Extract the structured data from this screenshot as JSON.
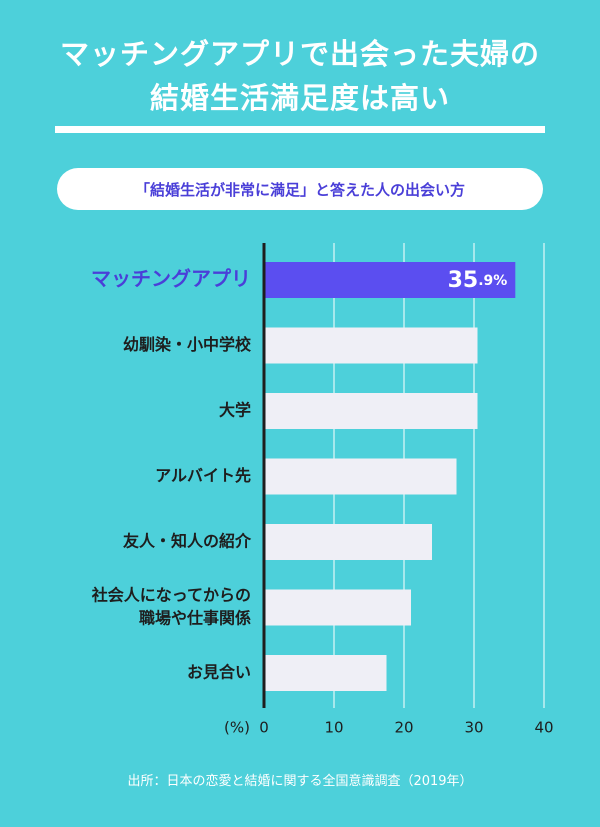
{
  "title_lines": [
    "マッチングアプリで出会った夫婦の",
    "結婚生活満足度は高い"
  ],
  "subtitle": "「結婚生活が非常に満足」と答えた人の出会い方",
  "source": "出所：日本の恋愛と結婚に関する全国意識調査（2019年）",
  "colors": {
    "background": "#4dd0da",
    "highlight_bar": "#5b4ef0",
    "bar": "#efeff6",
    "highlight_text": "#4a3fd8",
    "text": "#1e1e1e",
    "grid": "#ffffff"
  },
  "chart_data": {
    "type": "bar",
    "orientation": "horizontal",
    "categories": [
      [
        "マッチングアプリ"
      ],
      [
        "幼馴染・小中学校"
      ],
      [
        "大学"
      ],
      [
        "アルバイト先"
      ],
      [
        "友人・知人の紹介"
      ],
      [
        "社会人になってからの",
        "職場や仕事関係"
      ],
      [
        "お見合い"
      ]
    ],
    "values": [
      35.9,
      30.5,
      30.5,
      27.5,
      24.0,
      21.0,
      17.5
    ],
    "highlight_index": 0,
    "highlight_label_main": "35",
    "highlight_label_suffix": ".9%",
    "x_ticks": [
      "0",
      "10",
      "20",
      "30",
      "40"
    ],
    "x_unit_label": "(%)",
    "xlim": [
      0,
      40
    ],
    "grid": true
  }
}
